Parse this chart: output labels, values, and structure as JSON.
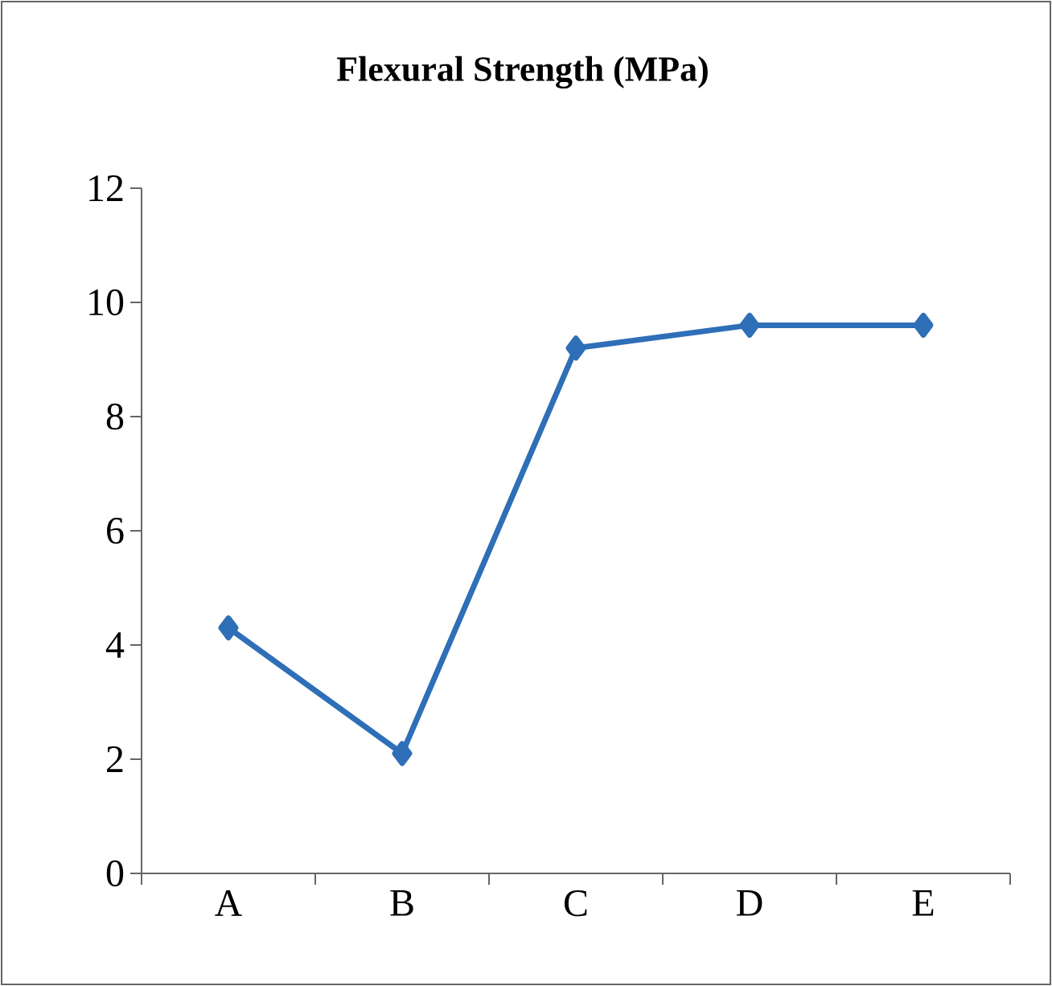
{
  "chart_data": {
    "type": "line",
    "title": "Flexural Strength (MPa)",
    "categories": [
      "A",
      "B",
      "C",
      "D",
      "E"
    ],
    "series": [
      {
        "color": "#2e6fb7",
        "values": [
          4.3,
          2.1,
          9.2,
          9.6,
          9.6
        ]
      }
    ],
    "ylim": [
      0,
      12
    ],
    "yticks": [
      0,
      2,
      4,
      6,
      8,
      10,
      12
    ],
    "marker": "diamond",
    "line_style": "solid"
  }
}
